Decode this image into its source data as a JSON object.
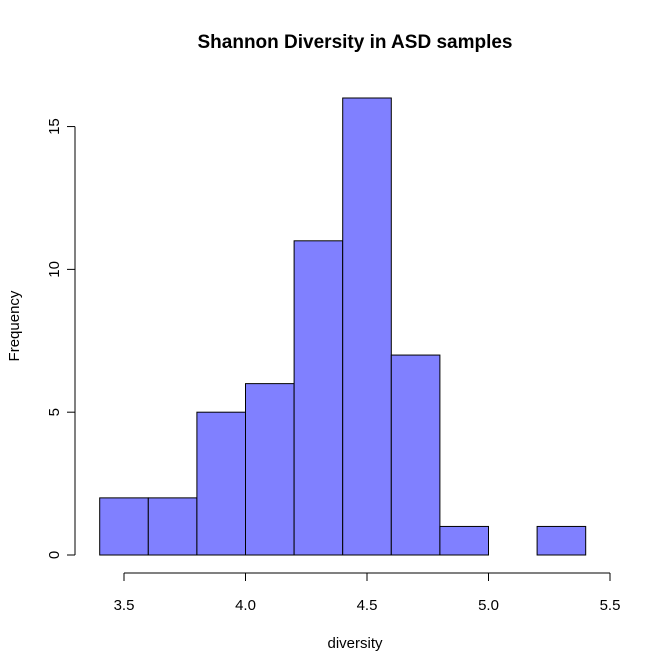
{
  "chart_data": {
    "type": "bar",
    "title": "Shannon Diversity in ASD samples",
    "xlabel": "diversity",
    "ylabel": "Frequency",
    "bins": [
      {
        "x0": 3.4,
        "x1": 3.6,
        "count": 2
      },
      {
        "x0": 3.6,
        "x1": 3.8,
        "count": 2
      },
      {
        "x0": 3.8,
        "x1": 4.0,
        "count": 5
      },
      {
        "x0": 4.0,
        "x1": 4.2,
        "count": 6
      },
      {
        "x0": 4.2,
        "x1": 4.4,
        "count": 11
      },
      {
        "x0": 4.4,
        "x1": 4.6,
        "count": 16
      },
      {
        "x0": 4.6,
        "x1": 4.8,
        "count": 7
      },
      {
        "x0": 4.8,
        "x1": 5.0,
        "count": 1
      },
      {
        "x0": 5.0,
        "x1": 5.2,
        "count": 0
      },
      {
        "x0": 5.2,
        "x1": 5.4,
        "count": 1
      }
    ],
    "xticks": [
      3.5,
      4.0,
      4.5,
      5.0,
      5.5
    ],
    "xtick_labels": [
      "3.5",
      "4.0",
      "4.5",
      "5.0",
      "5.5"
    ],
    "yticks": [
      0,
      5,
      10,
      15
    ],
    "ytick_labels": [
      "0",
      "5",
      "10",
      "15"
    ],
    "xlim": [
      3.5,
      5.5
    ],
    "ylim": [
      0,
      16
    ],
    "grid": false,
    "bar_color": "#8080ff"
  }
}
